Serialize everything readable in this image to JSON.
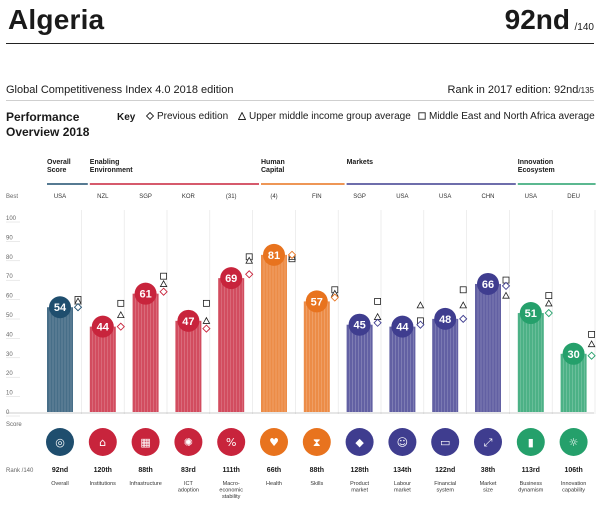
{
  "header": {
    "country": "Algeria",
    "rank": "92nd",
    "rank_of": "/140",
    "edition": "Global Competitiveness Index 4.0 2018 edition",
    "rank_2017_prefix": "Rank in 2017 edition: 92nd",
    "rank_2017_of": "/135",
    "section_title_1": "Performance",
    "section_title_2": "Overview 2018"
  },
  "key": {
    "label": "Key",
    "previous": "Previous edition",
    "upper_middle": "Upper middle income group average",
    "mena": "Middle East and North Africa average"
  },
  "labels": {
    "best": "Best",
    "score": "Score",
    "rank": "Rank /140"
  },
  "colors": {
    "overall": "#1f4e6e",
    "enabling": "#c8243c",
    "human": "#e8731e",
    "markets": "#3f3d8f",
    "innovation": "#25a06b"
  },
  "groups": [
    {
      "name_lines": [
        "Overall",
        "Score"
      ],
      "color": "overall",
      "start": 0,
      "end": 0
    },
    {
      "name_lines": [
        "Enabling",
        "Environment"
      ],
      "color": "enabling",
      "start": 1,
      "end": 4
    },
    {
      "name_lines": [
        "Human",
        "Capital"
      ],
      "color": "human",
      "start": 5,
      "end": 6
    },
    {
      "name_lines": [
        "Markets"
      ],
      "color": "markets",
      "start": 7,
      "end": 10
    },
    {
      "name_lines": [
        "Innovation",
        "Ecosystem"
      ],
      "color": "innovation",
      "start": 11,
      "end": 12
    }
  ],
  "chart_data": {
    "type": "bar",
    "ylim": [
      0,
      100
    ],
    "yticks": [
      0,
      10,
      20,
      30,
      40,
      50,
      60,
      70,
      80,
      90,
      100
    ],
    "categories": [
      "Overall",
      "Institutions",
      "Infrastructure",
      "ICT adoption",
      "Macro-economic stability",
      "Health",
      "Skills",
      "Product market",
      "Labour market",
      "Financial system",
      "Market size",
      "Business dynamism",
      "Innovation capability"
    ],
    "category_lines": [
      [
        "Overall"
      ],
      [
        "Institutions"
      ],
      [
        "Infrastructure"
      ],
      [
        "ICT",
        "adoption"
      ],
      [
        "Macro-",
        "economic",
        "stability"
      ],
      [
        "Health"
      ],
      [
        "Skills"
      ],
      [
        "Product",
        "market"
      ],
      [
        "Labour",
        "market"
      ],
      [
        "Financial",
        "system"
      ],
      [
        "Market",
        "size"
      ],
      [
        "Business",
        "dynamism"
      ],
      [
        "Innovation",
        "capability"
      ]
    ],
    "best_performers": [
      "USA",
      "NZL",
      "SGP",
      "KOR",
      "(31)",
      "(4)",
      "FIN",
      "SGP",
      "USA",
      "USA",
      "CHN",
      "USA",
      "DEU"
    ],
    "scores": [
      54,
      44,
      61,
      47,
      69,
      81,
      57,
      45,
      44,
      48,
      66,
      51,
      30
    ],
    "previous_edition": [
      54,
      44,
      62,
      43,
      71,
      81,
      59,
      46,
      45,
      48,
      65,
      51,
      29
    ],
    "upper_middle_income_avg": [
      57,
      50,
      66,
      47,
      78,
      80,
      61,
      49,
      55,
      55,
      60,
      56,
      35
    ],
    "mena_avg": [
      58,
      56,
      70,
      56,
      80,
      79,
      63,
      57,
      47,
      63,
      68,
      60,
      40
    ],
    "ranks": [
      "92nd",
      "120th",
      "88th",
      "83rd",
      "111th",
      "66th",
      "88th",
      "128th",
      "134th",
      "122nd",
      "38th",
      "113rd",
      "106th"
    ],
    "icons": [
      "location-pin-icon",
      "institution-building-icon",
      "infrastructure-grid-icon",
      "ict-chip-icon",
      "percent-icon",
      "heart-pulse-icon",
      "skills-hourglass-icon",
      "product-tag-icon",
      "labour-people-icon",
      "financial-card-icon",
      "market-size-expand-icon",
      "business-dynamism-icon",
      "innovation-bulb-icon"
    ]
  }
}
